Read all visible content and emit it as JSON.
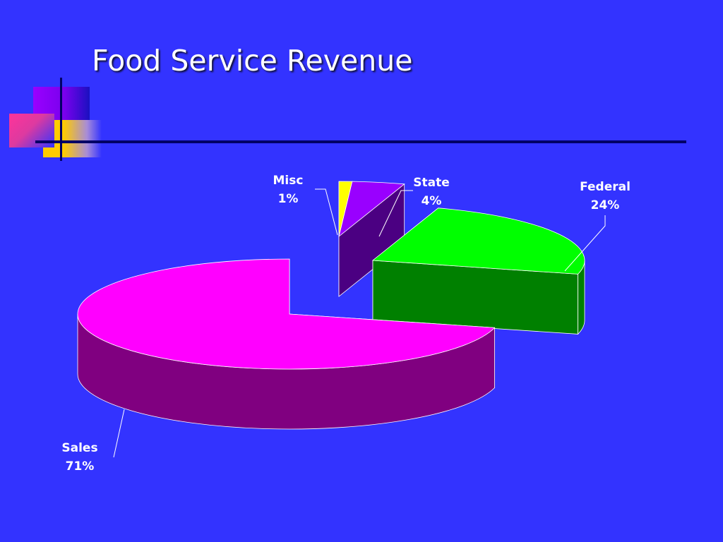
{
  "title": "Food Service Revenue",
  "chart_data": {
    "type": "pie",
    "title": "",
    "style": "3d exploded pie",
    "legend": "none",
    "slices": [
      {
        "category": "Sales",
        "value": 71,
        "label": "71%",
        "color": "#ff00ff",
        "side_color": "#800080"
      },
      {
        "category": "Misc",
        "value": 1,
        "label": "1%",
        "color": "#ffff00",
        "side_color": "#808000"
      },
      {
        "category": "State",
        "value": 4,
        "label": "4%",
        "color": "#9900ff",
        "side_color": "#4b0082"
      },
      {
        "category": "Federal",
        "value": 24,
        "label": "24%",
        "color": "#00ff00",
        "side_color": "#008000"
      }
    ]
  },
  "colors": {
    "background": "#3333ff",
    "title": "#ffffff",
    "rule": "#000066"
  }
}
